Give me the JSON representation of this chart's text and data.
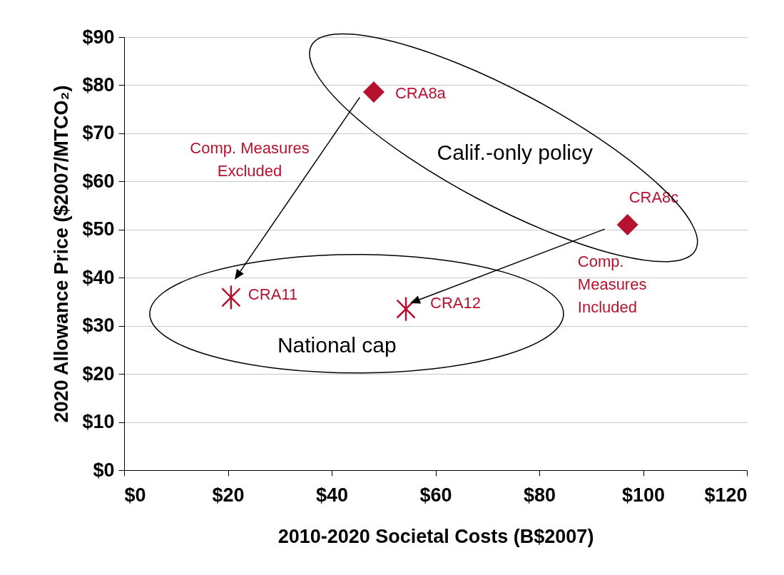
{
  "chart_data": {
    "type": "scatter",
    "xlabel": "2010-2020 Societal Costs (B$2007)",
    "ylabel": "2020 Allowance Price ($2007/MTCO₂)",
    "xlim": [
      0,
      120
    ],
    "xticks": [
      {
        "value": 0,
        "label": "$0"
      },
      {
        "value": 20,
        "label": "$20"
      },
      {
        "value": 40,
        "label": "$40"
      },
      {
        "value": 60,
        "label": "$60"
      },
      {
        "value": 80,
        "label": "$80"
      },
      {
        "value": 100,
        "label": "$100"
      },
      {
        "value": 120,
        "label": "$120"
      }
    ],
    "ylim": [
      0,
      90
    ],
    "yticks": [
      {
        "value": 0,
        "label": "$0"
      },
      {
        "value": 10,
        "label": "$10"
      },
      {
        "value": 20,
        "label": "$20"
      },
      {
        "value": 30,
        "label": "$30"
      },
      {
        "value": 40,
        "label": "$40"
      },
      {
        "value": 50,
        "label": "$50"
      },
      {
        "value": 60,
        "label": "$60"
      },
      {
        "value": 70,
        "label": "$70"
      },
      {
        "value": 80,
        "label": "$80"
      },
      {
        "value": 90,
        "label": "$90"
      }
    ],
    "grid": "y",
    "series": [
      {
        "color": "#b5122f",
        "marker": "diamond",
        "x": [
          48.1,
          97.0
        ],
        "values": [
          78.6,
          51.0
        ]
      },
      {
        "color": "#b5122f",
        "marker": "cross",
        "x": [
          20.6,
          54.3
        ],
        "values": [
          35.9,
          33.5
        ]
      }
    ],
    "annotations": [
      {
        "text": "CRA8a",
        "x": 48.1,
        "y": 78.6
      },
      {
        "text": "CRA8c",
        "x": 97.0,
        "y": 51.0
      },
      {
        "text": "CRA11",
        "x": 20.6,
        "y": 35.9
      },
      {
        "text": "CRA12",
        "x": 54.3,
        "y": 33.5
      },
      "Calif.-only policy",
      "National cap",
      "Comp. Measures\nExcluded",
      "Comp.\nMeasures\nIncluded"
    ]
  }
}
